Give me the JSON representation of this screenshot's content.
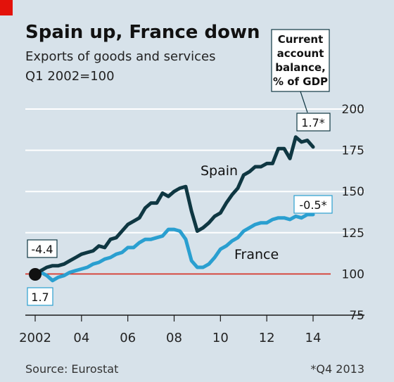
{
  "title": "Spain up, France down",
  "subtitle_line1": "Exports of goods and services",
  "subtitle_line2": "Q1 2002=100",
  "source": "Source: Eurostat",
  "footnote": "*Q4 2013",
  "colors": {
    "background": "#d7e2ea",
    "accent_red": "#e3120b",
    "spain": "#0f3742",
    "france": "#2a9fd0",
    "baseline": "#d52b1e",
    "grid": "#ffffff"
  },
  "callout_current_account": [
    "Current",
    "account",
    "balance,",
    "% of GDP"
  ],
  "chart_data": {
    "type": "line",
    "ylim": [
      75,
      200
    ],
    "xlim": [
      2002,
      2014.5
    ],
    "grid": true,
    "y_ticks": [
      "200",
      "175",
      "150",
      "125",
      "100",
      "75"
    ],
    "y_tick_values": [
      200,
      175,
      150,
      125,
      100,
      75
    ],
    "x_ticks": [
      "2002",
      "04",
      "06",
      "08",
      "10",
      "12",
      "14"
    ],
    "x_tick_values": [
      2002,
      2004,
      2006,
      2008,
      2010,
      2012,
      2014
    ],
    "baseline": 100,
    "series": [
      {
        "name": "Spain",
        "values": [
          [
            2002.0,
            100
          ],
          [
            2002.25,
            102
          ],
          [
            2002.5,
            104
          ],
          [
            2002.75,
            105
          ],
          [
            2003.0,
            105
          ],
          [
            2003.25,
            106
          ],
          [
            2003.5,
            108
          ],
          [
            2003.75,
            110
          ],
          [
            2004.0,
            112
          ],
          [
            2004.25,
            113
          ],
          [
            2004.5,
            114
          ],
          [
            2004.75,
            117
          ],
          [
            2005.0,
            116
          ],
          [
            2005.25,
            121
          ],
          [
            2005.5,
            122
          ],
          [
            2005.75,
            126
          ],
          [
            2006.0,
            130
          ],
          [
            2006.25,
            132
          ],
          [
            2006.5,
            134
          ],
          [
            2006.75,
            140
          ],
          [
            2007.0,
            143
          ],
          [
            2007.25,
            143
          ],
          [
            2007.5,
            149
          ],
          [
            2007.75,
            147
          ],
          [
            2008.0,
            150
          ],
          [
            2008.25,
            152
          ],
          [
            2008.5,
            153
          ],
          [
            2008.75,
            138
          ],
          [
            2009.0,
            126
          ],
          [
            2009.25,
            128
          ],
          [
            2009.5,
            131
          ],
          [
            2009.75,
            135
          ],
          [
            2010.0,
            137
          ],
          [
            2010.25,
            143
          ],
          [
            2010.5,
            148
          ],
          [
            2010.75,
            152
          ],
          [
            2011.0,
            160
          ],
          [
            2011.25,
            162
          ],
          [
            2011.5,
            165
          ],
          [
            2011.75,
            165
          ],
          [
            2012.0,
            167
          ],
          [
            2012.25,
            167
          ],
          [
            2012.5,
            176
          ],
          [
            2012.75,
            176
          ],
          [
            2013.0,
            170
          ],
          [
            2013.25,
            183
          ],
          [
            2013.5,
            180
          ],
          [
            2013.75,
            181
          ],
          [
            2014.0,
            177
          ]
        ]
      },
      {
        "name": "France",
        "values": [
          [
            2002.0,
            100
          ],
          [
            2002.25,
            101
          ],
          [
            2002.5,
            99
          ],
          [
            2002.75,
            96
          ],
          [
            2003.0,
            98
          ],
          [
            2003.25,
            99
          ],
          [
            2003.5,
            101
          ],
          [
            2003.75,
            102
          ],
          [
            2004.0,
            103
          ],
          [
            2004.25,
            104
          ],
          [
            2004.5,
            106
          ],
          [
            2004.75,
            107
          ],
          [
            2005.0,
            109
          ],
          [
            2005.25,
            110
          ],
          [
            2005.5,
            112
          ],
          [
            2005.75,
            113
          ],
          [
            2006.0,
            116
          ],
          [
            2006.25,
            116
          ],
          [
            2006.5,
            119
          ],
          [
            2006.75,
            121
          ],
          [
            2007.0,
            121
          ],
          [
            2007.25,
            122
          ],
          [
            2007.5,
            123
          ],
          [
            2007.75,
            127
          ],
          [
            2008.0,
            127
          ],
          [
            2008.25,
            126
          ],
          [
            2008.5,
            121
          ],
          [
            2008.75,
            108
          ],
          [
            2009.0,
            104
          ],
          [
            2009.25,
            104
          ],
          [
            2009.5,
            106
          ],
          [
            2009.75,
            110
          ],
          [
            2010.0,
            115
          ],
          [
            2010.25,
            117
          ],
          [
            2010.5,
            120
          ],
          [
            2010.75,
            122
          ],
          [
            2011.0,
            126
          ],
          [
            2011.25,
            128
          ],
          [
            2011.5,
            130
          ],
          [
            2011.75,
            131
          ],
          [
            2012.0,
            131
          ],
          [
            2012.25,
            133
          ],
          [
            2012.5,
            134
          ],
          [
            2012.75,
            134
          ],
          [
            2013.0,
            133
          ],
          [
            2013.25,
            135
          ],
          [
            2013.5,
            134
          ],
          [
            2013.75,
            136
          ],
          [
            2014.0,
            136
          ]
        ]
      }
    ],
    "annotations": {
      "spain_start": "-4.4",
      "france_start": "1.7",
      "spain_end": "1.7*",
      "france_end": "-0.5*"
    }
  }
}
